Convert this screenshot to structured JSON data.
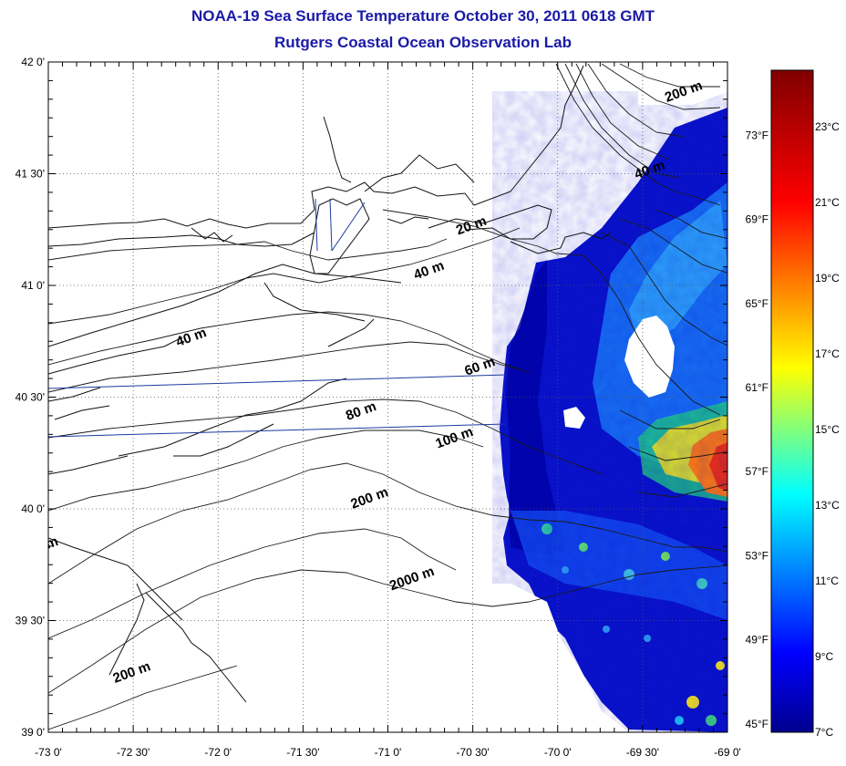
{
  "title": "NOAA-19 Sea Surface Temperature October 30, 2011 0618 GMT",
  "subtitle": "Rutgers Coastal Ocean Observation Lab",
  "colors": {
    "title": "#1a1aa6",
    "coast": "#111111",
    "track": "#1e3aa0",
    "cloud": "#ffffff"
  },
  "map": {
    "lon_labels": [
      "-73 0'",
      "-72 30'",
      "-72 0'",
      "-71 30'",
      "-71 0'",
      "-70 30'",
      "-70 0'",
      "-69 30'",
      "-69 0'"
    ],
    "lat_labels": [
      "42 0'",
      "41 30'",
      "41 0'",
      "40 30'",
      "40 0'",
      "39 30'",
      "39 0'"
    ],
    "lon_range": [
      -73,
      -69
    ],
    "lat_range": [
      39,
      42
    ],
    "grid": "dotted",
    "isobath_labels": [
      {
        "text": "200 m",
        "lon": -69.25,
        "lat": 41.85
      },
      {
        "text": "40 m",
        "lon": -69.45,
        "lat": 41.5
      },
      {
        "text": "20 m",
        "lon": -70.5,
        "lat": 41.25
      },
      {
        "text": "40 m",
        "lon": -70.75,
        "lat": 41.05
      },
      {
        "text": "40 m",
        "lon": -72.15,
        "lat": 40.75
      },
      {
        "text": "60 m",
        "lon": -70.45,
        "lat": 40.62
      },
      {
        "text": "80 m",
        "lon": -71.15,
        "lat": 40.42
      },
      {
        "text": "100 m",
        "lon": -70.6,
        "lat": 40.3
      },
      {
        "text": "200 m",
        "lon": -71.1,
        "lat": 40.03
      },
      {
        "text": "2000 m",
        "lon": -70.85,
        "lat": 39.67
      },
      {
        "text": "m",
        "lon": -72.97,
        "lat": 39.83
      },
      {
        "text": "200 m",
        "lon": -72.5,
        "lat": 39.25
      }
    ]
  },
  "colorbar": {
    "celsius_labels": [
      "23°C",
      "21°C",
      "19°C",
      "17°C",
      "15°C",
      "13°C",
      "11°C",
      "9°C",
      "7°C"
    ],
    "fahrenheit_labels": [
      "73°F",
      "69°F",
      "65°F",
      "61°F",
      "57°F",
      "53°F",
      "49°F",
      "45°F"
    ],
    "range_c": [
      7,
      24.5
    ]
  }
}
